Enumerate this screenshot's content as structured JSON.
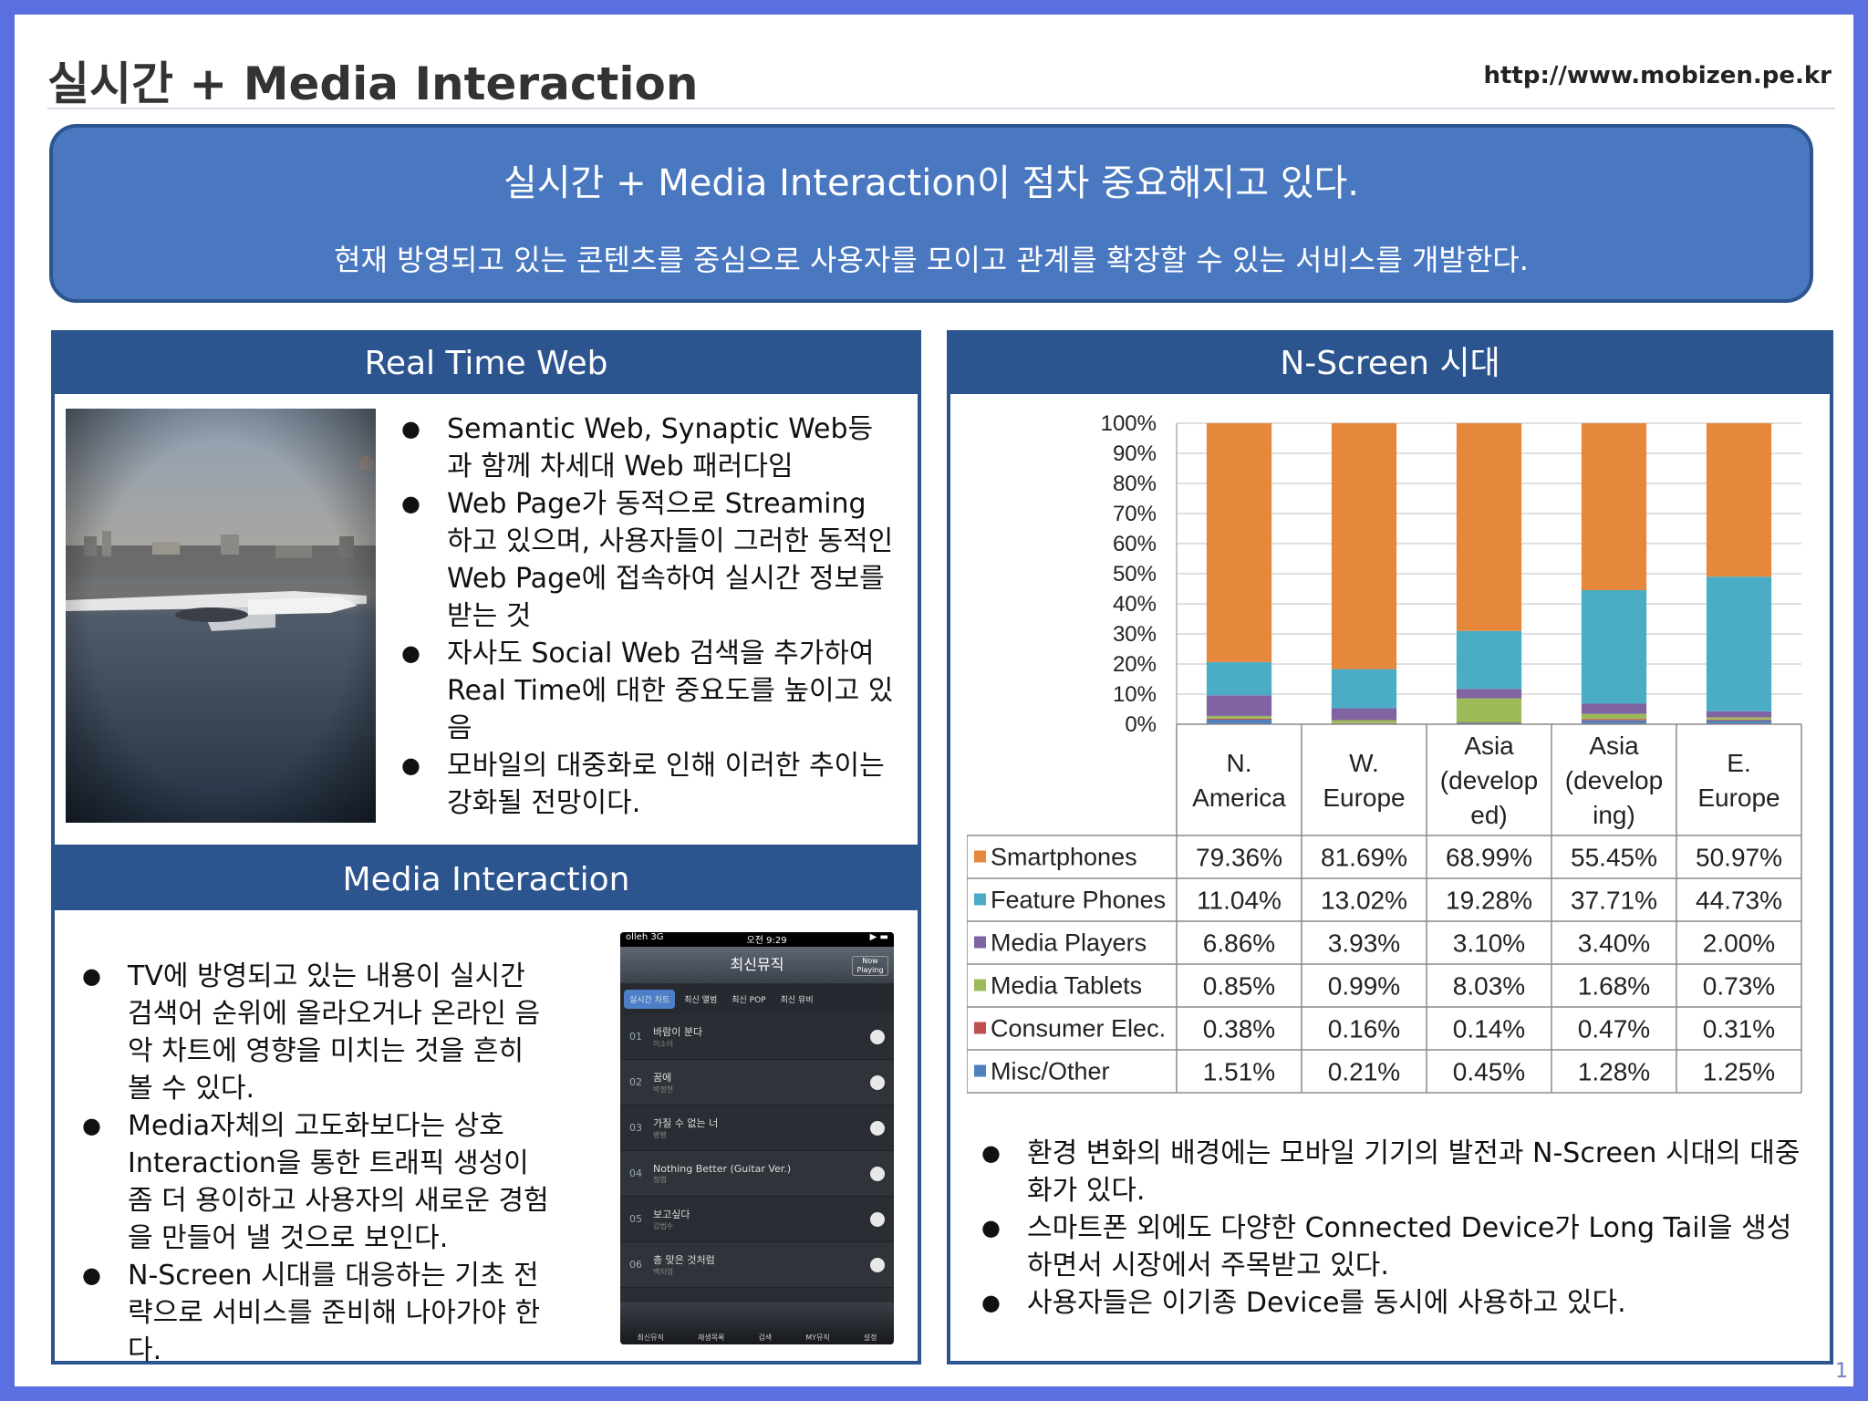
{
  "header": {
    "title": "실시간 + Media Interaction",
    "url": "http://www.mobizen.pe.kr"
  },
  "banner": {
    "headline": "실시간 + Media Interaction이 점차 중요해지고 있다.",
    "subline": "현재 방영되고 있는 콘텐츠를 중심으로 사용자를 모이고 관계를 확장할 수 있는 서비스를 개발한다."
  },
  "real_time_web": {
    "title": "Real Time Web",
    "bullets": [
      "Semantic Web, Synaptic Web등과 함께 차세대 Web 패러다임",
      "Web Page가 동적으로 Streaming 하고 있으며, 사용자들이 그러한 동적인 Web Page에 접속하여 실시간 정보를 받는 것",
      "자사도 Social Web 검색을 추가하여 Real Time에 대한 중요도를 높이고 있음",
      "모바일의 대중화로 인해 이러한 추이는 강화될 전망이다."
    ]
  },
  "media_interaction": {
    "title": "Media Interaction",
    "bullets": [
      "TV에 방영되고 있는 내용이 실시간 검색어 순위에 올라오거나 온라인 음악 차트에 영향을 미치는 것을 흔히 볼 수 있다.",
      "Media자체의 고도화보다는 상호 Interaction을 통한 트래픽 생성이 좀 더 용이하고 사용자의 새로운 경험을 만들어 낼 것으로 보인다.",
      "N-Screen 시대를 대응하는 기초 전략으로 서비스를 준비해 나아가야 한다."
    ],
    "phone": {
      "carrier": "olleh  3G",
      "time": "오전 9:29",
      "screen_title": "최신뮤직",
      "now_playing": "Now Playing",
      "tabs": [
        "실시간 차트",
        "최신 앨범",
        "최신 POP",
        "최신 뮤비"
      ],
      "songs": [
        {
          "rank": "01",
          "title": "바람이 분다",
          "artist": "이소라"
        },
        {
          "rank": "02",
          "title": "꿈에",
          "artist": "박정현"
        },
        {
          "rank": "03",
          "title": "가질 수 없는 너",
          "artist": "뱅뱅"
        },
        {
          "rank": "04",
          "title": "Nothing Better (Guitar Ver.)",
          "artist": "정엽"
        },
        {
          "rank": "05",
          "title": "보고싶다",
          "artist": "김범수"
        },
        {
          "rank": "06",
          "title": "총 맞은 것처럼",
          "artist": "백지영"
        }
      ],
      "bottom_tabs": [
        "최신뮤직",
        "재생목록",
        "검색",
        "MY뮤직",
        "설정"
      ]
    }
  },
  "n_screen": {
    "title": "N-Screen 시대",
    "bullets": [
      "환경 변화의 배경에는 모바일 기기의 발전과 N-Screen 시대의 대중화가 있다.",
      "스마트폰 외에도 다양한 Connected Device가 Long Tail을 생성하면서 시장에서 주목받고 있다.",
      "사용자들은 이기종 Device를 동시에 사용하고 있다."
    ]
  },
  "chart_data": {
    "type": "bar",
    "stacked": true,
    "categories": [
      "N. America",
      "W. Europe",
      "Asia (developed)",
      "Asia (developing)",
      "E. Europe"
    ],
    "category_labels": [
      [
        "N.",
        "America"
      ],
      [
        "W.",
        "Europe"
      ],
      [
        "Asia",
        "(develop",
        "ed)"
      ],
      [
        "Asia",
        "(develop",
        "ing)"
      ],
      [
        "E.",
        "Europe"
      ]
    ],
    "y_ticks": [
      "0%",
      "10%",
      "20%",
      "30%",
      "40%",
      "50%",
      "60%",
      "70%",
      "80%",
      "90%",
      "100%"
    ],
    "ylim": [
      0,
      100
    ],
    "grid": true,
    "series": [
      {
        "name": "Misc/Other",
        "color": "#4f81bd",
        "values": [
          1.51,
          0.21,
          0.45,
          1.28,
          1.25
        ],
        "labels": [
          "1.51%",
          "0.21%",
          "0.45%",
          "1.28%",
          "1.25%"
        ]
      },
      {
        "name": "Consumer Elec.",
        "color": "#c0504d",
        "values": [
          0.38,
          0.16,
          0.14,
          0.47,
          0.31
        ],
        "labels": [
          "0.38%",
          "0.16%",
          "0.14%",
          "0.47%",
          "0.31%"
        ]
      },
      {
        "name": "Media Tablets",
        "color": "#9bbb59",
        "values": [
          0.85,
          0.99,
          8.03,
          1.68,
          0.73
        ],
        "labels": [
          "0.85%",
          "0.99%",
          "8.03%",
          "1.68%",
          "0.73%"
        ]
      },
      {
        "name": "Media Players",
        "color": "#8064a2",
        "values": [
          6.86,
          3.93,
          3.1,
          3.4,
          2.0
        ],
        "labels": [
          "6.86%",
          "3.93%",
          "3.10%",
          "3.40%",
          "2.00%"
        ]
      },
      {
        "name": "Feature Phones",
        "color": "#4bacc6",
        "values": [
          11.04,
          13.02,
          19.28,
          37.71,
          44.73
        ],
        "labels": [
          "11.04%",
          "13.02%",
          "19.28%",
          "37.71%",
          "44.73%"
        ]
      },
      {
        "name": "Smartphones",
        "color": "#e5883c",
        "values": [
          79.36,
          81.69,
          68.99,
          55.45,
          50.97
        ],
        "labels": [
          "79.36%",
          "81.69%",
          "68.99%",
          "55.45%",
          "50.97%"
        ]
      }
    ],
    "table_order": [
      "Smartphones",
      "Feature Phones",
      "Media Players",
      "Media Tablets",
      "Consumer Elec.",
      "Misc/Other"
    ]
  },
  "page_number": "1"
}
